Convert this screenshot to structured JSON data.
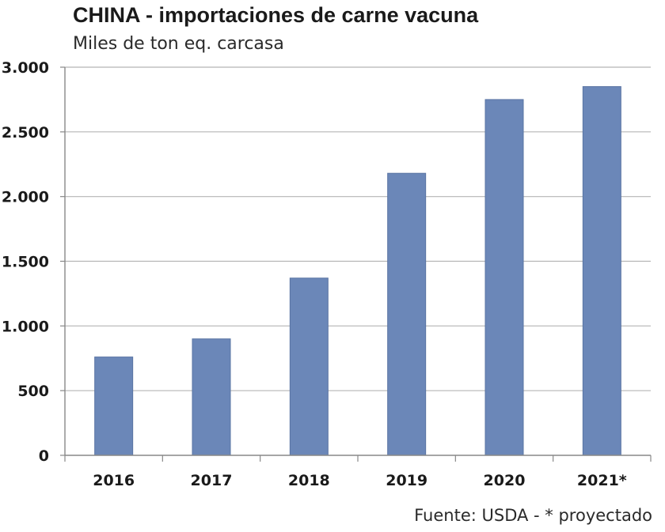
{
  "chart_data": {
    "type": "bar",
    "title": "CHINA - importaciones de carne vacuna",
    "subtitle": "Miles de ton eq. carcasa",
    "categories": [
      "2016",
      "2017",
      "2018",
      "2019",
      "2020",
      "2021*"
    ],
    "values": [
      760,
      900,
      1370,
      2180,
      2750,
      2850
    ],
    "ylim": [
      0,
      3000
    ],
    "yticks": [
      0,
      500,
      1000,
      1500,
      2000,
      2500,
      3000
    ],
    "ytick_labels": [
      "0",
      "500",
      "1.000",
      "1.500",
      "2.000",
      "2.500",
      "3.000"
    ],
    "grid": true,
    "legend": "none",
    "source": "Fuente: USDA - * proyectado",
    "colors": {
      "bar": "#6b87b8",
      "bar_edge": "#5a74a3",
      "grid": "#b5b5b5",
      "axis": "#888888"
    }
  }
}
